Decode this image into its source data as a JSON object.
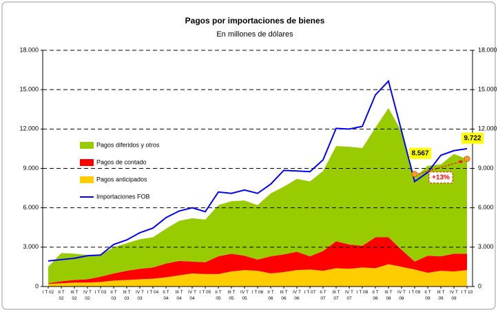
{
  "chart_data": {
    "type": "stacked_area",
    "title": "Pagos por importaciones de bienes",
    "subtitle": "En millones de dólares",
    "categories": [
      "I T 02",
      "II T 02",
      "III T 02",
      "IV T 02",
      "I T 03",
      "II T 03",
      "III T 03",
      "IV T 03",
      "I T 04",
      "II T 04",
      "III T 04",
      "IV T 04",
      "I T 05",
      "II T 05",
      "III T 05",
      "IV T 05",
      "I T 06",
      "II T 06",
      "III T 06",
      "IV T 06",
      "I T 07",
      "II T 07",
      "III T 07",
      "IV T 07",
      "I T 08",
      "II T 08",
      "III T 08",
      "IV T 08",
      "I T 09",
      "II T 09",
      "III T 09",
      "IV T 09",
      "I T 10"
    ],
    "series": [
      {
        "name": "Pagos anticipados",
        "color": "#ffcc00",
        "kind": "area",
        "values": [
          200,
          250,
          300,
          300,
          350,
          450,
          500,
          550,
          600,
          700,
          850,
          1000,
          950,
          950,
          1150,
          1250,
          1200,
          1000,
          1100,
          1250,
          1300,
          1200,
          1400,
          1350,
          1450,
          1400,
          1700,
          1500,
          1300,
          1050,
          1200,
          1150,
          1250
        ]
      },
      {
        "name": "Pagos de contado",
        "color": "#ff0000",
        "kind": "area",
        "values": [
          50,
          150,
          200,
          250,
          400,
          550,
          700,
          800,
          850,
          1050,
          1100,
          900,
          900,
          1350,
          1350,
          1100,
          850,
          1300,
          1350,
          1400,
          1000,
          1500,
          2050,
          1850,
          1650,
          2350,
          2050,
          1300,
          600,
          1300,
          1100,
          1350,
          1250
        ]
      },
      {
        "name": "Pagos diferidos y otros",
        "color": "#99cc00",
        "kind": "area",
        "values": [
          1250,
          2150,
          2000,
          1850,
          1650,
          2000,
          2100,
          2250,
          2300,
          2650,
          3050,
          3300,
          3250,
          3900,
          4000,
          4200,
          4150,
          4800,
          5150,
          5550,
          5700,
          6100,
          7250,
          7450,
          7450,
          8350,
          9850,
          9000,
          6400,
          6850,
          7000,
          7600,
          7200
        ]
      },
      {
        "name": "Importaciones FOB",
        "color": "#0000ff",
        "kind": "line",
        "values": [
          1950,
          2050,
          2150,
          2350,
          2400,
          3200,
          3550,
          4100,
          4450,
          5250,
          5750,
          6000,
          5700,
          7200,
          7100,
          7350,
          7100,
          7800,
          8850,
          8800,
          8750,
          9650,
          12050,
          12000,
          12200,
          14600,
          15650,
          11850,
          8000,
          8700,
          10000,
          10350,
          10500
        ]
      }
    ],
    "ylim": [
      0,
      18000
    ],
    "yticks": [
      {
        "value": 0,
        "label": "0"
      },
      {
        "value": 3000,
        "label": "3.000"
      },
      {
        "value": 6000,
        "label": "6.000"
      },
      {
        "value": 9000,
        "label": "9.000"
      },
      {
        "value": 12000,
        "label": "12.000"
      },
      {
        "value": 15000,
        "label": "15.000"
      },
      {
        "value": 18000,
        "label": "18.000"
      }
    ],
    "y2lim": [
      0,
      18000
    ],
    "y2ticks": [
      {
        "value": 0,
        "label": "0"
      },
      {
        "value": 3000,
        "label": "3.000"
      },
      {
        "value": 6000,
        "label": "6.000"
      },
      {
        "value": 9000,
        "label": "9.000"
      },
      {
        "value": 12000,
        "label": "12.000"
      },
      {
        "value": 15000,
        "label": "15.000"
      },
      {
        "value": 18000,
        "label": "18.000"
      }
    ],
    "grid": true,
    "annotations": [
      {
        "category": "I T 09",
        "value": 8567,
        "label": "8.567"
      },
      {
        "category": "I T 10",
        "value": 9722,
        "label": "9.722"
      }
    ],
    "change_label": "+13%"
  }
}
